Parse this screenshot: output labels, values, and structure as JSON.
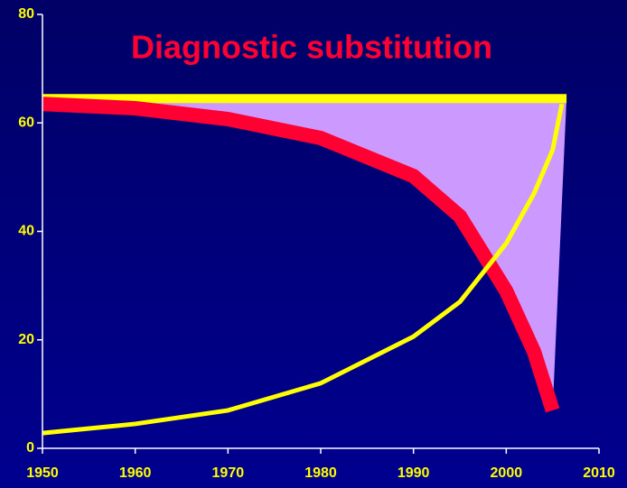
{
  "chart_data": {
    "type": "line",
    "title": "Diagnostic substitution",
    "title_color": "#ff0033",
    "xlim": [
      1950,
      2010
    ],
    "xticks": [
      1950,
      1960,
      1970,
      1980,
      1990,
      2000,
      2010
    ],
    "ylim": [
      0,
      80
    ],
    "yticks": [
      0,
      20,
      40,
      60,
      80
    ],
    "area": {
      "color": "#cc99ff",
      "x": [
        1950,
        1960,
        1970,
        1980,
        1990,
        1995,
        2000,
        2003,
        2005,
        2006.5
      ],
      "values": [
        63.5,
        62.7,
        60.7,
        57.2,
        50.2,
        42.8,
        29,
        17.8,
        7,
        64.5
      ],
      "top": 64.5
    },
    "series": [
      {
        "color": "#ffff00",
        "width": 10,
        "x": [
          1950,
          2006.5
        ],
        "values": [
          64.5,
          64.5
        ]
      },
      {
        "color": "#ff0033",
        "width": 16,
        "x": [
          1950,
          1960,
          1970,
          1980,
          1990,
          1995,
          2000,
          2003,
          2005
        ],
        "values": [
          63.5,
          62.7,
          60.7,
          57.2,
          50.2,
          42.8,
          29,
          17.8,
          7
        ]
      },
      {
        "color": "#ffff00",
        "width": 5,
        "x": [
          1950,
          1960,
          1970,
          1980,
          1990,
          1995,
          2000,
          2003,
          2005,
          2006
        ],
        "values": [
          2.8,
          4.5,
          7,
          12,
          20.6,
          27,
          37.8,
          47,
          55,
          63.5
        ]
      }
    ]
  }
}
